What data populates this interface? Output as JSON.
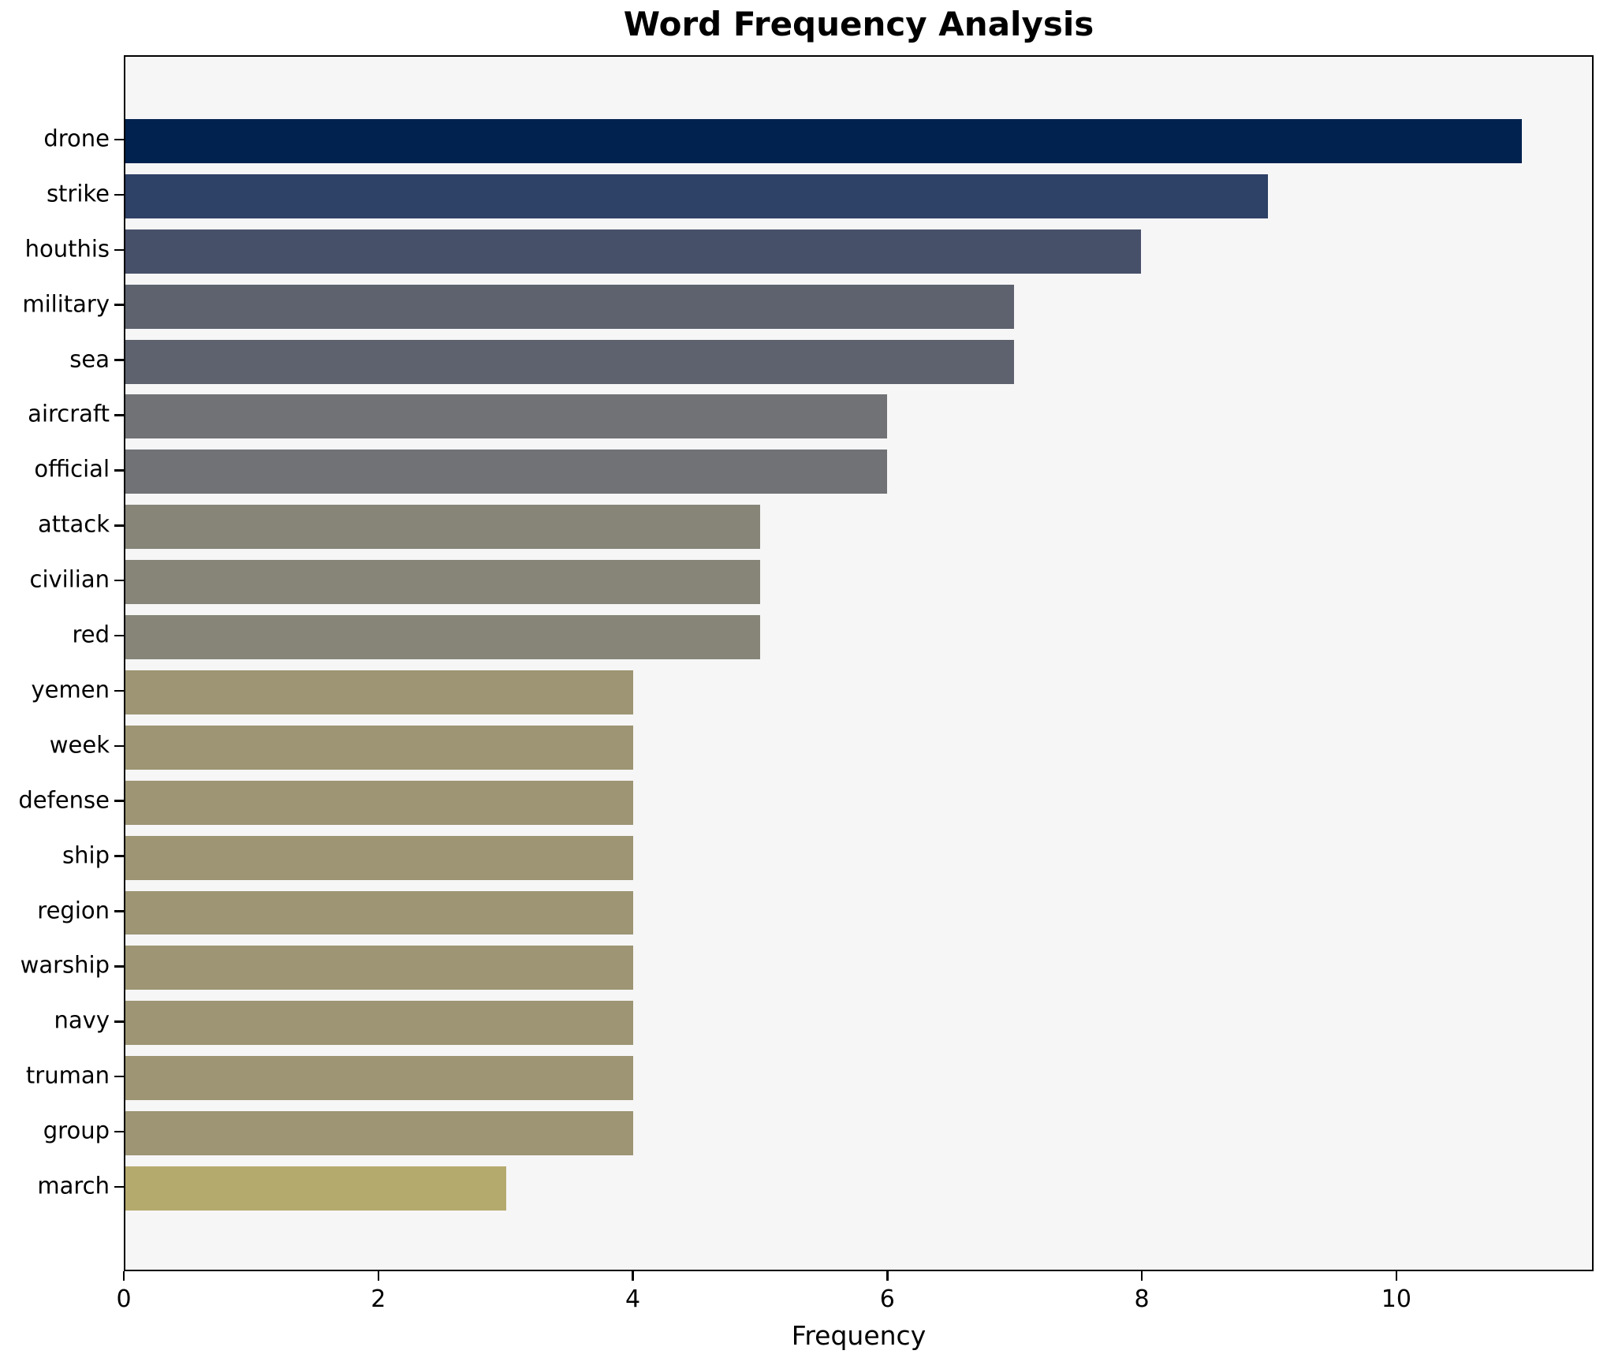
{
  "styles": {
    "plot_background": "#f6f6f7",
    "axis_color": "#000000",
    "text_color": "#000000"
  },
  "chart_data": {
    "type": "bar",
    "orientation": "horizontal",
    "title": "Word Frequency Analysis",
    "xlabel": "Frequency",
    "ylabel": "",
    "grid": false,
    "legend": false,
    "xlim": [
      0,
      11.55
    ],
    "xticks": [
      0,
      2,
      4,
      6,
      8,
      10
    ],
    "categories": [
      "drone",
      "strike",
      "houthis",
      "military",
      "sea",
      "aircraft",
      "official",
      "attack",
      "civilian",
      "red",
      "yemen",
      "week",
      "defense",
      "ship",
      "region",
      "warship",
      "navy",
      "truman",
      "group",
      "march"
    ],
    "values": [
      11,
      9,
      8,
      7,
      7,
      6,
      6,
      5,
      5,
      5,
      4,
      4,
      4,
      4,
      4,
      4,
      4,
      4,
      4,
      3
    ],
    "colors": [
      "#01224e",
      "#2e4166",
      "#475069",
      "#5d626e",
      "#5d626e",
      "#717275",
      "#717275",
      "#868578",
      "#868578",
      "#868578",
      "#9d9573",
      "#9d9573",
      "#9d9573",
      "#9d9573",
      "#9d9573",
      "#9d9573",
      "#9d9573",
      "#9d9573",
      "#9d9573",
      "#b5aa6e"
    ]
  }
}
